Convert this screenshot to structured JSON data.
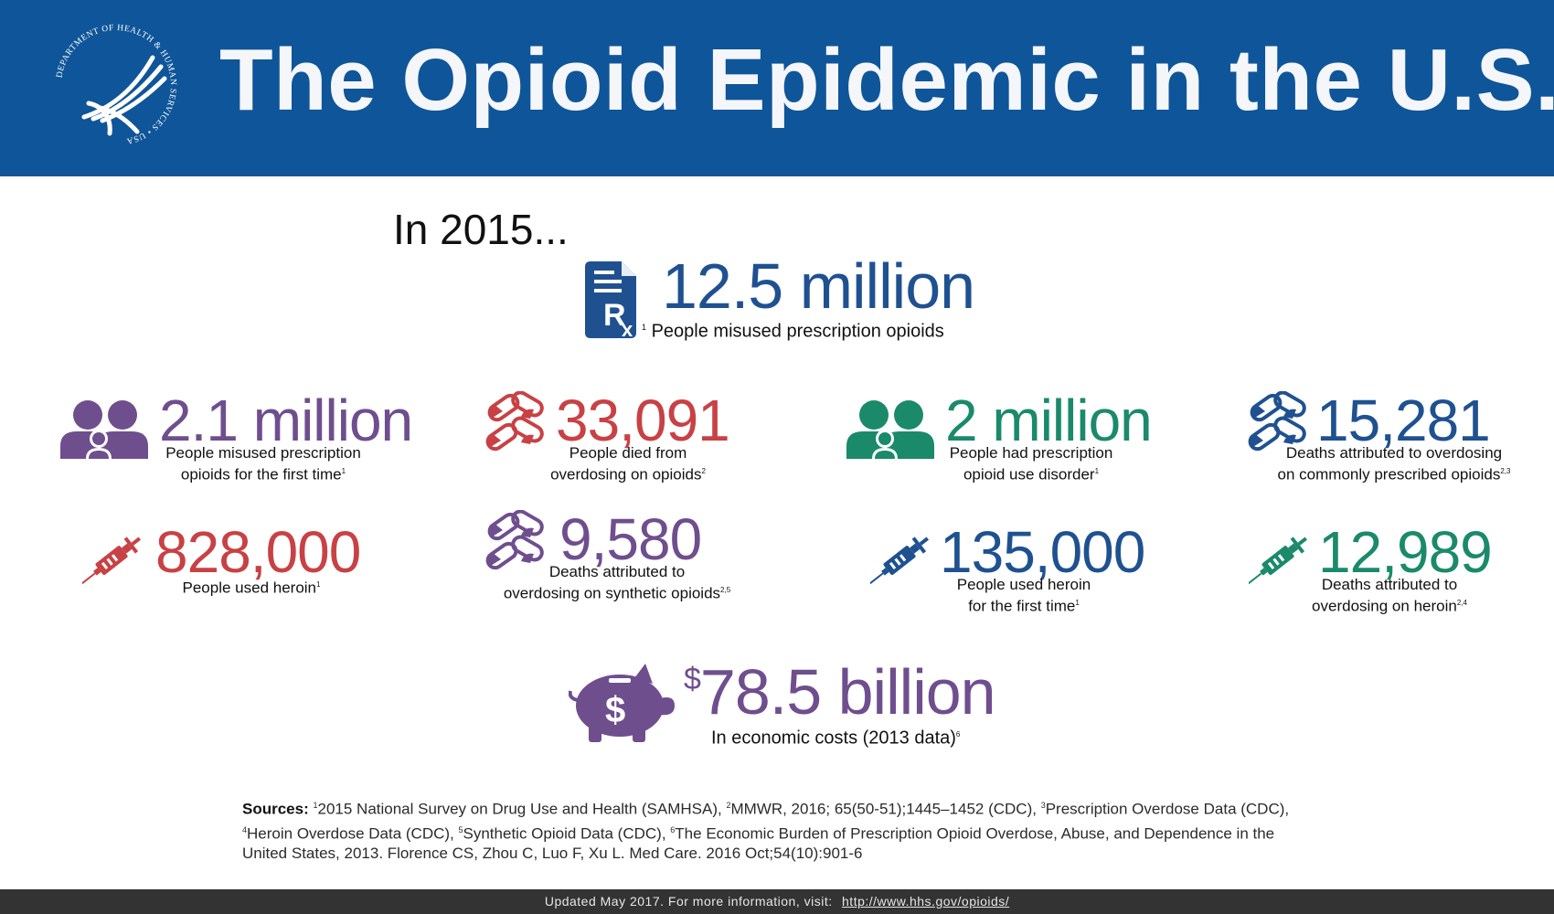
{
  "header": {
    "title": "The Opioid Epidemic in the U.S.",
    "seal_text": "DEPARTMENT OF HEALTH & HUMAN SERVICES • USA",
    "background": "#0f5599"
  },
  "intro": "In 2015...",
  "headline_stat": {
    "value": "12.5 million",
    "caption": "People misused prescription opioids",
    "footnote": "1",
    "icon": "prescription-icon",
    "color": "#1f5191"
  },
  "stats": [
    {
      "value": "2.1 million",
      "caption_lines": [
        "People misused prescription",
        "opioids for the first time"
      ],
      "footnote": "1",
      "icon": "people-icon",
      "color": "#6f4e8e"
    },
    {
      "value": "33,091",
      "caption_lines": [
        "People died from",
        "overdosing on opioids"
      ],
      "footnote": "2",
      "icon": "pills-icon",
      "color": "#c84144"
    },
    {
      "value": "2 million",
      "caption_lines": [
        "People had prescription",
        "opioid use disorder"
      ],
      "footnote": "1",
      "icon": "people-icon",
      "color": "#1a8a6b"
    },
    {
      "value": "15,281",
      "caption_lines": [
        "Deaths attributed to overdosing",
        "on commonly prescribed opioids"
      ],
      "footnote": "2,3",
      "icon": "pills-icon",
      "color": "#1f5191"
    },
    {
      "value": "828,000",
      "caption_lines": [
        "People used heroin"
      ],
      "footnote": "1",
      "icon": "syringe-icon",
      "color": "#c84144"
    },
    {
      "value": "9,580",
      "caption_lines": [
        "Deaths attributed to",
        "overdosing on synthetic opioids"
      ],
      "footnote": "2,5",
      "icon": "pills-icon",
      "color": "#6f4e8e"
    },
    {
      "value": "135,000",
      "caption_lines": [
        "People used heroin",
        "for the first time"
      ],
      "footnote": "1",
      "icon": "syringe-icon",
      "color": "#1f5191"
    },
    {
      "value": "12,989",
      "caption_lines": [
        "Deaths attributed to",
        "overdosing on heroin"
      ],
      "footnote": "2,4",
      "icon": "syringe-icon",
      "color": "#1a8a6b"
    }
  ],
  "cost_stat": {
    "currency": "$",
    "value": "78.5 billion",
    "caption": "In economic costs (2013 data)",
    "footnote": "6",
    "icon": "piggy-bank-icon",
    "color": "#6f4e8e"
  },
  "sources": {
    "label": "Sources:",
    "items": [
      {
        "num": "1",
        "text": "2015 National Survey on Drug Use and Health (SAMHSA),"
      },
      {
        "num": "2",
        "text": "MMWR, 2016; 65(50-51);1445–1452 (CDC),"
      },
      {
        "num": "3",
        "text": "Prescription Overdose Data (CDC),"
      },
      {
        "num": "4",
        "text": "Heroin Overdose Data (CDC),"
      },
      {
        "num": "5",
        "text": "Synthetic Opioid Data (CDC),"
      },
      {
        "num": "6",
        "text": "The Economic Burden of Prescription Opioid Overdose, Abuse, and Dependence in the United States, 2013. Florence CS, Zhou C, Luo F, Xu L. Med Care. 2016 Oct;54(10):901-6"
      }
    ]
  },
  "footer": {
    "text": "Updated May 2017. For more information, visit:",
    "link": "http://www.hhs.gov/opioids/"
  }
}
